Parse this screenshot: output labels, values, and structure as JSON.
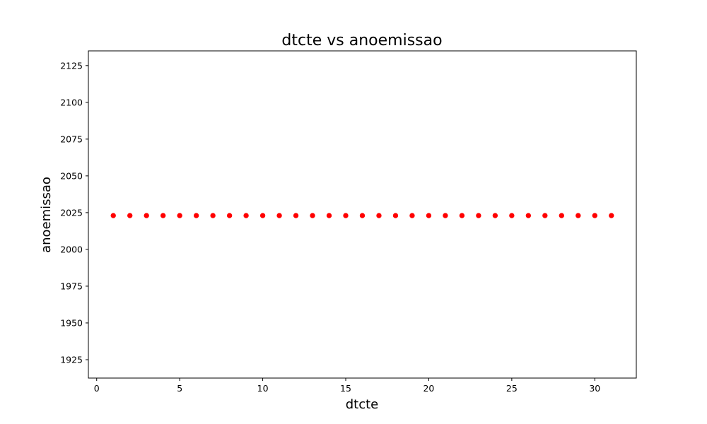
{
  "chart_data": {
    "type": "scatter",
    "title": "dtcte vs anoemissao",
    "xlabel": "dtcte",
    "ylabel": "anoemissao",
    "xlim": [
      -0.5,
      32.5
    ],
    "ylim": [
      1912.5,
      2135
    ],
    "x_ticks": [
      0,
      5,
      10,
      15,
      20,
      25,
      30
    ],
    "y_ticks": [
      1925,
      1950,
      1975,
      2000,
      2025,
      2050,
      2075,
      2100,
      2125
    ],
    "grid": false,
    "point_color": "#ff0000",
    "x": [
      1,
      2,
      3,
      4,
      5,
      6,
      7,
      8,
      9,
      10,
      11,
      12,
      13,
      14,
      15,
      16,
      17,
      18,
      19,
      20,
      21,
      22,
      23,
      24,
      25,
      26,
      27,
      28,
      29,
      30,
      31
    ],
    "y": [
      2023,
      2023,
      2023,
      2023,
      2023,
      2023,
      2023,
      2023,
      2023,
      2023,
      2023,
      2023,
      2023,
      2023,
      2023,
      2023,
      2023,
      2023,
      2023,
      2023,
      2023,
      2023,
      2023,
      2023,
      2023,
      2023,
      2023,
      2023,
      2023,
      2023,
      2023
    ]
  }
}
